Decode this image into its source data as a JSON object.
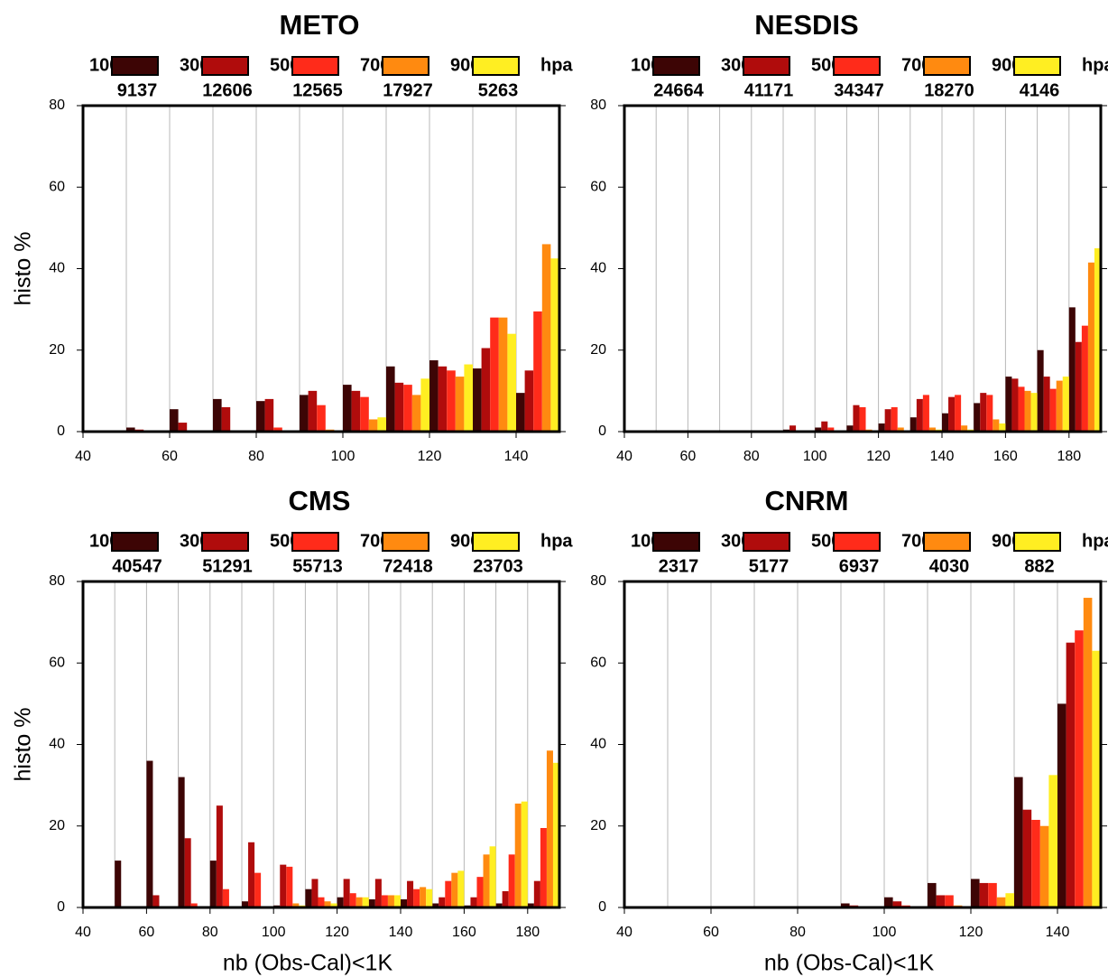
{
  "chart_data": [
    {
      "type": "bar",
      "title": "METO",
      "ylabel": "histo %",
      "legend_labels": [
        "100",
        "300",
        "500",
        "700",
        "900",
        "hpa"
      ],
      "x": [
        50,
        60,
        70,
        80,
        90,
        100,
        110,
        120,
        130,
        140
      ],
      "series": [
        {
          "color": "#3d0505",
          "count": 9137,
          "values": [
            1,
            5.5,
            8,
            7.5,
            9,
            11.5,
            16,
            17.5,
            15.5,
            9.5
          ]
        },
        {
          "color": "#b00c0c",
          "count": 12606,
          "values": [
            0.5,
            2.2,
            6,
            8,
            10,
            10,
            12,
            16,
            20.5,
            15
          ]
        },
        {
          "color": "#ff2b1a",
          "count": 12565,
          "values": [
            0.3,
            0.3,
            0.3,
            1,
            6.5,
            8.5,
            11.5,
            15,
            28,
            29.5
          ]
        },
        {
          "color": "#ff8a10",
          "count": 17927,
          "values": [
            0,
            0,
            0,
            0,
            0.5,
            3,
            9,
            13.5,
            28,
            46
          ]
        },
        {
          "color": "#ffee22",
          "count": 5263,
          "values": [
            0,
            0,
            0,
            0,
            0,
            3.5,
            13,
            16.5,
            24,
            42.5
          ]
        }
      ],
      "xlim": [
        40,
        150
      ],
      "xticks": [
        40,
        60,
        80,
        100,
        120,
        140
      ],
      "ylim": [
        0,
        80
      ],
      "yticks": [
        0,
        20,
        40,
        60,
        80
      ],
      "grid": true
    },
    {
      "type": "bar",
      "title": "NESDIS",
      "legend_labels": [
        "100",
        "300",
        "500",
        "700",
        "900",
        "hpa"
      ],
      "x": [
        50,
        60,
        70,
        80,
        90,
        100,
        110,
        120,
        130,
        140,
        150,
        160,
        170,
        180
      ],
      "series": [
        {
          "color": "#3d0505",
          "count": 24664,
          "values": [
            0,
            0,
            0,
            0,
            0.5,
            1,
            1.5,
            2,
            3.5,
            4.5,
            7,
            13.5,
            20,
            30.5
          ]
        },
        {
          "color": "#b00c0c",
          "count": 41171,
          "values": [
            0,
            0,
            0,
            0,
            1.5,
            2.5,
            6.5,
            5.5,
            8,
            8.5,
            9.5,
            13,
            13.5,
            22
          ]
        },
        {
          "color": "#ff2b1a",
          "count": 34347,
          "values": [
            0,
            0,
            0,
            0,
            0.3,
            1,
            6,
            6,
            9,
            9,
            9,
            11,
            10.5,
            26
          ]
        },
        {
          "color": "#ff8a10",
          "count": 18270,
          "values": [
            0,
            0,
            0,
            0,
            0,
            0,
            0.5,
            1,
            1,
            1.5,
            3,
            10,
            12.5,
            41.5
          ]
        },
        {
          "color": "#ffee22",
          "count": 4146,
          "values": [
            0,
            0,
            0,
            0,
            0,
            0,
            0,
            0,
            0.5,
            0.5,
            2,
            9.5,
            13.5,
            45
          ]
        }
      ],
      "xlim": [
        40,
        190
      ],
      "xticks": [
        40,
        60,
        80,
        100,
        120,
        140,
        160,
        180
      ],
      "ylim": [
        0,
        80
      ],
      "yticks": [
        0,
        20,
        40,
        60,
        80
      ],
      "grid": true
    },
    {
      "type": "bar",
      "title": "CMS",
      "ylabel": "histo %",
      "xlabel": "nb (Obs-Cal)<1K",
      "legend_labels": [
        "100",
        "300",
        "500",
        "700",
        "900",
        "hpa"
      ],
      "x": [
        50,
        60,
        70,
        80,
        90,
        100,
        110,
        120,
        130,
        140,
        150,
        160,
        170,
        180
      ],
      "series": [
        {
          "color": "#3d0505",
          "count": 40547,
          "values": [
            11.5,
            36,
            32,
            11.5,
            1.5,
            0.5,
            4.5,
            2.5,
            2,
            2,
            1,
            0.5,
            1,
            1
          ]
        },
        {
          "color": "#b00c0c",
          "count": 51291,
          "values": [
            0,
            3,
            17,
            25,
            16,
            10.5,
            7,
            7,
            7,
            6.5,
            2.5,
            2.5,
            4,
            6.5
          ]
        },
        {
          "color": "#ff2b1a",
          "count": 55713,
          "values": [
            0,
            0,
            1,
            4.5,
            8.5,
            10,
            2.5,
            3.5,
            3,
            4.5,
            6.5,
            7.5,
            13,
            19.5
          ]
        },
        {
          "color": "#ff8a10",
          "count": 72418,
          "values": [
            0,
            0,
            0,
            0,
            0,
            1,
            1.5,
            2.5,
            3,
            5,
            8.5,
            13,
            25.5,
            38.5
          ]
        },
        {
          "color": "#ffee22",
          "count": 23703,
          "values": [
            0,
            0,
            0,
            0,
            0,
            0.5,
            1,
            2.5,
            3,
            4.5,
            9,
            15,
            26,
            35.5
          ]
        }
      ],
      "xlim": [
        40,
        190
      ],
      "xticks": [
        40,
        60,
        80,
        100,
        120,
        140,
        160,
        180
      ],
      "ylim": [
        0,
        80
      ],
      "yticks": [
        0,
        20,
        40,
        60,
        80
      ],
      "grid": true
    },
    {
      "type": "bar",
      "title": "CNRM",
      "xlabel": "nb (Obs-Cal)<1K",
      "legend_labels": [
        "100",
        "300",
        "500",
        "700",
        "900",
        "hpa"
      ],
      "x": [
        50,
        60,
        70,
        80,
        90,
        100,
        110,
        120,
        130,
        140
      ],
      "series": [
        {
          "color": "#3d0505",
          "count": 2317,
          "values": [
            0,
            0,
            0,
            0,
            1,
            2.5,
            6,
            7,
            32,
            50
          ]
        },
        {
          "color": "#b00c0c",
          "count": 5177,
          "values": [
            0,
            0,
            0,
            0,
            0.5,
            1.5,
            3,
            6,
            24,
            65
          ]
        },
        {
          "color": "#ff2b1a",
          "count": 6937,
          "values": [
            0,
            0,
            0,
            0,
            0,
            0.5,
            3,
            6,
            21.5,
            68
          ]
        },
        {
          "color": "#ff8a10",
          "count": 4030,
          "values": [
            0,
            0,
            0,
            0,
            0,
            0,
            0.5,
            2.5,
            20,
            76
          ]
        },
        {
          "color": "#ffee22",
          "count": 882,
          "values": [
            0,
            0,
            0,
            0,
            0,
            0,
            0,
            3.5,
            32.5,
            63
          ]
        }
      ],
      "xlim": [
        40,
        150
      ],
      "xticks": [
        40,
        60,
        80,
        100,
        120,
        140
      ],
      "ylim": [
        0,
        80
      ],
      "yticks": [
        0,
        20,
        40,
        60,
        80
      ],
      "grid": true
    }
  ]
}
